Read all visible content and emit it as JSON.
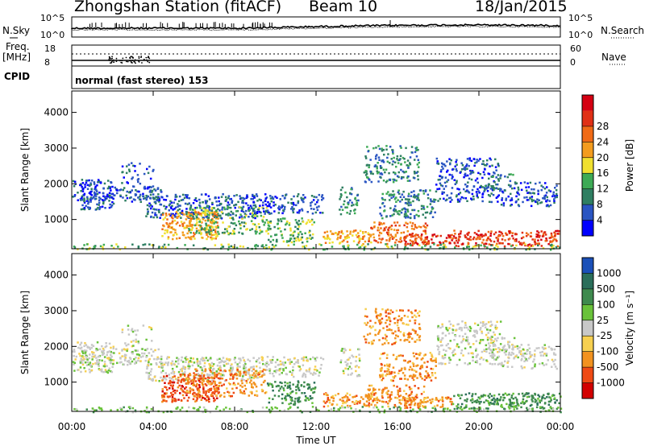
{
  "header": {
    "station": "Zhongshan Station (fitACF)",
    "beam": "Beam 10",
    "date": "18/Jan/2015"
  },
  "panels": {
    "nsky_label": "N.Sky",
    "nsky_ticks": [
      "10^5",
      "10^0"
    ],
    "nsearch_label": "N.Search",
    "nsearch_ticks": [
      "10^5",
      "10^0"
    ],
    "freq_label_1": "Freq.",
    "freq_label_2": "[MHz]",
    "freq_ticks": [
      "18",
      "8"
    ],
    "nave_label": "Nave",
    "nave_ticks": [
      "60",
      "0"
    ],
    "cpid_label": "CPID",
    "cpid_text": "normal (fast stereo) 153"
  },
  "colors": {
    "power": [
      "#0000ff",
      "#2a55c2",
      "#2f7f62",
      "#3daa55",
      "#f0e030",
      "#f39c1e",
      "#f06a16",
      "#e03016",
      "#d40012"
    ],
    "velocity": [
      "#1a50b8",
      "#2a6e5a",
      "#3e8a4e",
      "#69c23a",
      "#c8c8c8",
      "#f7d050",
      "#f2921f",
      "#ef4a14",
      "#d20000"
    ]
  },
  "chart_data": [
    {
      "type": "heatmap",
      "name": "power",
      "x": [
        "00:00",
        "04:00",
        "08:00",
        "12:00",
        "16:00",
        "20:00",
        "00:00"
      ],
      "xlabel": "",
      "ylabel": "Slant Range [km]",
      "yticks": [
        1000,
        2000,
        3000,
        4000
      ],
      "ylim": [
        180,
        4600
      ],
      "colorbar": {
        "label": "Power [dB]",
        "ticks": [
          4,
          8,
          12,
          16,
          20,
          24,
          28
        ]
      },
      "grid": false
    },
    {
      "type": "heatmap",
      "name": "velocity",
      "x": [
        "00:00",
        "04:00",
        "08:00",
        "12:00",
        "16:00",
        "20:00",
        "00:00"
      ],
      "xlabel": "Time UT",
      "ylabel": "Slant Range [km]",
      "yticks": [
        1000,
        2000,
        3000,
        4000
      ],
      "ylim": [
        180,
        4600
      ],
      "colorbar": {
        "label": "Velocity [m s⁻¹]",
        "ticks": [
          "1000",
          "500",
          "100",
          "25",
          "-25",
          "-100",
          "-500",
          "-1000"
        ]
      },
      "grid": false
    }
  ]
}
